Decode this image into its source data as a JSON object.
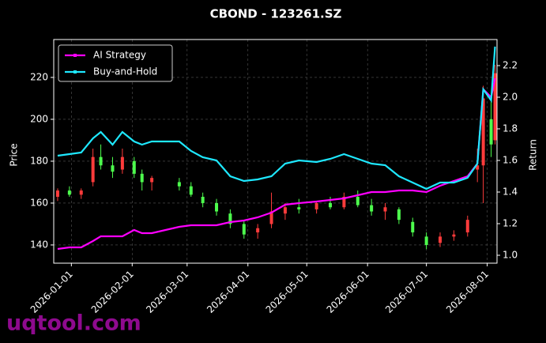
{
  "chart_data": {
    "type": "candlestick",
    "title": "CBOND - 123261.SZ",
    "ylabel": "Price",
    "y2label": "Return",
    "watermark": "uqtool.com",
    "up_color": "#ff3b3b",
    "down_color": "#4dff4d",
    "x": [
      "2025-12-25",
      "2025-12-31",
      "2026-01-06",
      "2026-01-12",
      "2026-01-16",
      "2026-01-22",
      "2026-01-27",
      "2026-02-02",
      "2026-02-06",
      "2026-02-11",
      "2026-02-25",
      "2026-03-03",
      "2026-03-09",
      "2026-03-16",
      "2026-03-23",
      "2026-03-30",
      "2026-04-06",
      "2026-04-13",
      "2026-04-20",
      "2026-04-27",
      "2026-05-06",
      "2026-05-13",
      "2026-05-20",
      "2026-05-27",
      "2026-06-03",
      "2026-06-10",
      "2026-06-17",
      "2026-06-24",
      "2026-07-01",
      "2026-07-08",
      "2026-07-15",
      "2026-07-22",
      "2026-07-27",
      "2026-07-30",
      "2026-08-03",
      "2026-08-05"
    ],
    "open": [
      163,
      166,
      164,
      170,
      182,
      178,
      176,
      180,
      174,
      170,
      170,
      168,
      163,
      160,
      155,
      150,
      146,
      150,
      155,
      158,
      157,
      160,
      158,
      163,
      159,
      156,
      157,
      151,
      144,
      141,
      144,
      146,
      176,
      178,
      200,
      190
    ],
    "high": [
      167,
      168,
      167,
      186,
      188,
      182,
      186,
      182,
      176,
      173,
      172,
      170,
      165,
      162,
      157,
      152,
      150,
      165,
      160,
      162,
      161,
      163,
      165,
      166,
      162,
      160,
      158,
      153,
      146,
      146,
      147,
      154,
      186,
      216,
      212,
      226
    ],
    "low": [
      161,
      163,
      162,
      168,
      176,
      172,
      174,
      172,
      166,
      166,
      166,
      163,
      158,
      154,
      148,
      143,
      143,
      148,
      152,
      155,
      155,
      157,
      157,
      158,
      154,
      152,
      150,
      144,
      138,
      139,
      142,
      144,
      170,
      160,
      182,
      188
    ],
    "close": [
      166,
      164,
      166,
      182,
      178,
      175,
      182,
      174,
      170,
      172,
      168,
      164,
      160,
      156,
      150,
      145,
      148,
      156,
      158,
      157,
      160,
      158,
      163,
      159,
      156,
      158,
      152,
      146,
      140,
      144,
      145,
      152,
      178,
      210,
      188,
      222
    ],
    "series": [
      {
        "name": "AI Strategy",
        "color": "#ff00ff",
        "axis": "y2",
        "values": [
          1.04,
          1.05,
          1.05,
          1.09,
          1.12,
          1.12,
          1.12,
          1.16,
          1.14,
          1.14,
          1.18,
          1.19,
          1.19,
          1.19,
          1.21,
          1.22,
          1.24,
          1.27,
          1.32,
          1.33,
          1.34,
          1.35,
          1.36,
          1.38,
          1.4,
          1.4,
          1.41,
          1.41,
          1.4,
          1.44,
          1.47,
          1.5,
          1.58,
          2.05,
          2.0,
          2.12
        ]
      },
      {
        "name": "Buy-and-Hold",
        "color": "#1ee8ff",
        "axis": "y2",
        "values": [
          1.63,
          1.64,
          1.65,
          1.74,
          1.78,
          1.7,
          1.78,
          1.72,
          1.7,
          1.72,
          1.72,
          1.66,
          1.62,
          1.6,
          1.5,
          1.47,
          1.48,
          1.5,
          1.58,
          1.6,
          1.59,
          1.61,
          1.64,
          1.61,
          1.58,
          1.57,
          1.5,
          1.46,
          1.42,
          1.46,
          1.46,
          1.49,
          1.58,
          2.05,
          1.98,
          2.32
        ]
      }
    ],
    "xlim": [
      "2025-12-23",
      "2026-08-06"
    ],
    "xticks": [
      "2026-01-01",
      "2026-02-01",
      "2026-03-01",
      "2026-04-01",
      "2026-05-01",
      "2026-06-01",
      "2026-07-01",
      "2026-08-01"
    ],
    "ylim": [
      131.3,
      238.1
    ],
    "yticks": [
      140,
      160,
      180,
      200,
      220
    ],
    "y2lim": [
      0.95,
      2.365
    ],
    "y2ticks": [
      {
        "value": 1.0,
        "label": "1.0"
      },
      1.2,
      1.4,
      1.6,
      1.8,
      {
        "value": 2.0,
        "label": "2.0"
      },
      2.2
    ],
    "grid": true,
    "legend": "upper left"
  }
}
